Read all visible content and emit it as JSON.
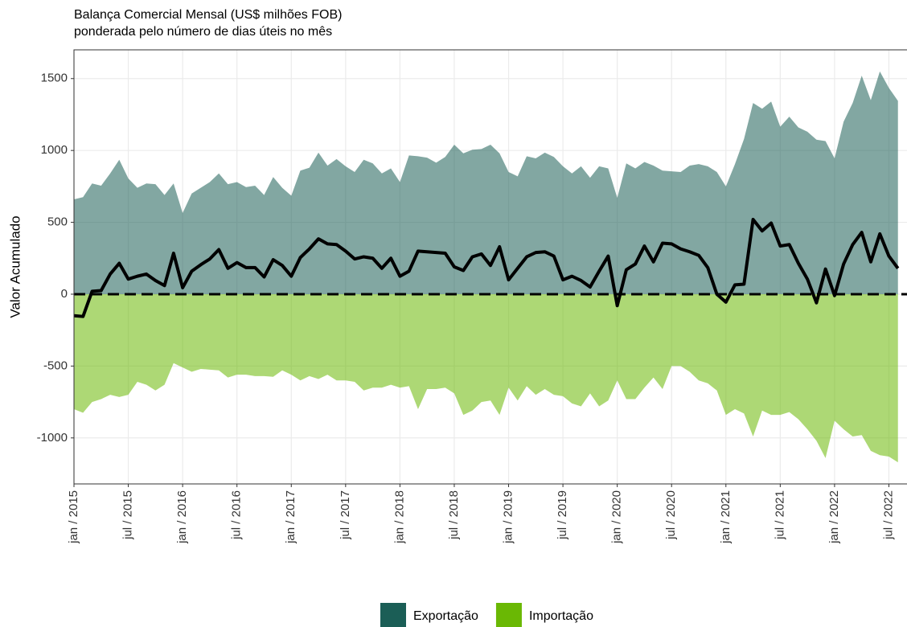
{
  "chart_data": {
    "type": "area",
    "title": "Balança Comercial Mensal (US$ milhões FOB)",
    "subtitle": "ponderada pelo número de dias úteis no mês",
    "y_label": "Valor Acumulado",
    "x": [
      "2015-01",
      "2015-02",
      "2015-03",
      "2015-04",
      "2015-05",
      "2015-06",
      "2015-07",
      "2015-08",
      "2015-09",
      "2015-10",
      "2015-11",
      "2015-12",
      "2016-01",
      "2016-02",
      "2016-03",
      "2016-04",
      "2016-05",
      "2016-06",
      "2016-07",
      "2016-08",
      "2016-09",
      "2016-10",
      "2016-11",
      "2016-12",
      "2017-01",
      "2017-02",
      "2017-03",
      "2017-04",
      "2017-05",
      "2017-06",
      "2017-07",
      "2017-08",
      "2017-09",
      "2017-10",
      "2017-11",
      "2017-12",
      "2018-01",
      "2018-02",
      "2018-03",
      "2018-04",
      "2018-05",
      "2018-06",
      "2018-07",
      "2018-08",
      "2018-09",
      "2018-10",
      "2018-11",
      "2018-12",
      "2019-01",
      "2019-02",
      "2019-03",
      "2019-04",
      "2019-05",
      "2019-06",
      "2019-07",
      "2019-08",
      "2019-09",
      "2019-10",
      "2019-11",
      "2019-12",
      "2020-01",
      "2020-02",
      "2020-03",
      "2020-04",
      "2020-05",
      "2020-06",
      "2020-07",
      "2020-08",
      "2020-09",
      "2020-10",
      "2020-11",
      "2020-12",
      "2021-01",
      "2021-02",
      "2021-03",
      "2021-04",
      "2021-05",
      "2021-06",
      "2021-07",
      "2021-08",
      "2021-09",
      "2021-10",
      "2021-11",
      "2021-12",
      "2022-01",
      "2022-02",
      "2022-03",
      "2022-04",
      "2022-05",
      "2022-06",
      "2022-07",
      "2022-08"
    ],
    "series": [
      {
        "name": "Exportação",
        "color": "#1b5e56",
        "values": [
          660,
          675,
          770,
          755,
          840,
          935,
          805,
          740,
          770,
          765,
          690,
          770,
          565,
          700,
          740,
          780,
          840,
          765,
          780,
          745,
          755,
          690,
          815,
          740,
          685,
          860,
          880,
          985,
          895,
          940,
          890,
          850,
          935,
          910,
          840,
          875,
          780,
          965,
          960,
          950,
          915,
          955,
          1040,
          980,
          1005,
          1010,
          1040,
          980,
          850,
          820,
          960,
          945,
          985,
          955,
          890,
          840,
          890,
          810,
          890,
          875,
          670,
          910,
          875,
          920,
          895,
          860,
          855,
          850,
          895,
          905,
          890,
          850,
          750,
          905,
          1080,
          1330,
          1290,
          1340,
          1165,
          1235,
          1160,
          1130,
          1075,
          1065,
          945,
          1200,
          1330,
          1520,
          1350,
          1550,
          1435,
          1345
        ]
      },
      {
        "name": "Importação",
        "color": "#6ab804",
        "values": [
          -800,
          -825,
          -750,
          -730,
          -700,
          -715,
          -700,
          -610,
          -630,
          -670,
          -630,
          -480,
          -510,
          -540,
          -520,
          -525,
          -530,
          -580,
          -560,
          -560,
          -570,
          -570,
          -575,
          -530,
          -560,
          -600,
          -570,
          -590,
          -560,
          -600,
          -600,
          -610,
          -670,
          -650,
          -650,
          -630,
          -650,
          -640,
          -800,
          -660,
          -660,
          -650,
          -690,
          -840,
          -810,
          -750,
          -740,
          -840,
          -650,
          -740,
          -640,
          -700,
          -660,
          -700,
          -710,
          -760,
          -780,
          -690,
          -780,
          -740,
          -600,
          -730,
          -730,
          -650,
          -580,
          -660,
          -500,
          -500,
          -540,
          -600,
          -620,
          -670,
          -840,
          -800,
          -830,
          -990,
          -810,
          -840,
          -840,
          -820,
          -870,
          -940,
          -1020,
          -1140,
          -880,
          -940,
          -990,
          -980,
          -1090,
          -1120,
          -1130,
          -1170
        ]
      }
    ],
    "line": {
      "color": "#000000",
      "values": [
        -150,
        -155,
        20,
        25,
        140,
        215,
        105,
        125,
        140,
        95,
        60,
        285,
        45,
        160,
        205,
        245,
        310,
        180,
        220,
        185,
        185,
        120,
        240,
        200,
        125,
        255,
        315,
        385,
        350,
        345,
        300,
        245,
        260,
        250,
        180,
        250,
        125,
        160,
        300,
        295,
        290,
        285,
        190,
        165,
        260,
        280,
        200,
        330,
        100,
        180,
        260,
        290,
        295,
        265,
        100,
        125,
        95,
        50,
        160,
        265,
        -80,
        170,
        210,
        335,
        225,
        355,
        350,
        315,
        295,
        270,
        185,
        0,
        -55,
        65,
        70,
        520,
        440,
        495,
        335,
        345,
        215,
        105,
        -60,
        175,
        -10,
        210,
        345,
        430,
        225,
        420,
        265,
        180
      ]
    },
    "reference_line": 0,
    "xlim": [
      "2015-01",
      "2022-09"
    ],
    "xticks": [
      {
        "value": "2015-01",
        "label": "jan / 2015"
      },
      {
        "value": "2015-07",
        "label": "jul / 2015"
      },
      {
        "value": "2016-01",
        "label": "jan / 2016"
      },
      {
        "value": "2016-07",
        "label": "jul / 2016"
      },
      {
        "value": "2017-01",
        "label": "jan / 2017"
      },
      {
        "value": "2017-07",
        "label": "jul / 2017"
      },
      {
        "value": "2018-01",
        "label": "jan / 2018"
      },
      {
        "value": "2018-07",
        "label": "jul / 2018"
      },
      {
        "value": "2019-01",
        "label": "jan / 2019"
      },
      {
        "value": "2019-07",
        "label": "jul / 2019"
      },
      {
        "value": "2020-01",
        "label": "jan / 2020"
      },
      {
        "value": "2020-07",
        "label": "jul / 2020"
      },
      {
        "value": "2021-01",
        "label": "jan / 2021"
      },
      {
        "value": "2021-07",
        "label": "jul / 2021"
      },
      {
        "value": "2022-01",
        "label": "jan / 2022"
      },
      {
        "value": "2022-07",
        "label": "jul / 2022"
      }
    ],
    "ylim": [
      -1320,
      1700
    ],
    "yticks": [
      -1000,
      -500,
      0,
      500,
      1000,
      1500
    ],
    "grid": true,
    "legend": "bottom"
  }
}
